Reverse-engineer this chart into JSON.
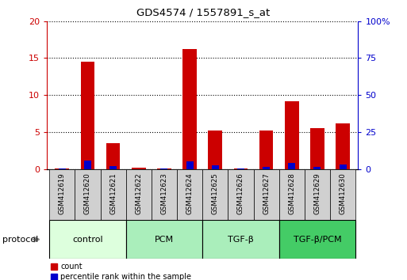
{
  "title": "GDS4574 / 1557891_s_at",
  "samples": [
    "GSM412619",
    "GSM412620",
    "GSM412621",
    "GSM412622",
    "GSM412623",
    "GSM412624",
    "GSM412625",
    "GSM412626",
    "GSM412627",
    "GSM412628",
    "GSM412629",
    "GSM412630"
  ],
  "count": [
    0.1,
    14.5,
    3.5,
    0.2,
    0.1,
    16.2,
    5.2,
    0.1,
    5.2,
    9.2,
    5.6,
    6.2
  ],
  "percentile": [
    0.5,
    6.2,
    2.4,
    0.3,
    0.8,
    5.5,
    2.7,
    0.7,
    1.6,
    4.3,
    1.6,
    3.1
  ],
  "ylim_left": [
    0,
    20
  ],
  "ylim_right": [
    0,
    100
  ],
  "yticks_left": [
    0,
    5,
    10,
    15,
    20
  ],
  "yticks_right": [
    0,
    25,
    50,
    75,
    100
  ],
  "groups": [
    {
      "label": "control",
      "start": 0,
      "end": 3
    },
    {
      "label": "PCM",
      "start": 3,
      "end": 6
    },
    {
      "label": "TGF-β",
      "start": 6,
      "end": 9
    },
    {
      "label": "TGF-β/PCM",
      "start": 9,
      "end": 12
    }
  ],
  "group_colors": [
    "#ddffdd",
    "#aaeebb",
    "#aaeebb",
    "#44cc66"
  ],
  "bar_color_red": "#cc0000",
  "bar_color_blue": "#0000cc",
  "bar_width": 0.55,
  "blue_bar_width": 0.28,
  "legend_count_label": "count",
  "legend_pct_label": "percentile rank within the sample",
  "protocol_label": "protocol"
}
